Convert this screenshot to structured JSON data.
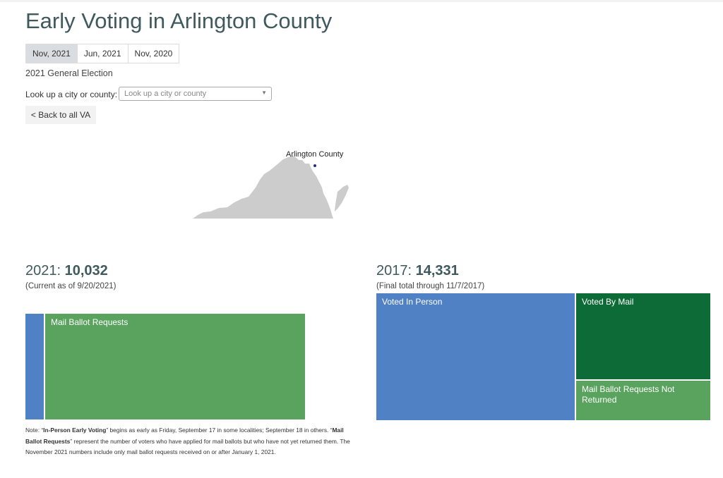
{
  "page": {
    "title": "Early Voting in Arlington County"
  },
  "tabs": [
    {
      "label": "Nov, 2021",
      "active": true
    },
    {
      "label": "Jun, 2021",
      "active": false
    },
    {
      "label": "Nov, 2020",
      "active": false
    }
  ],
  "election_name": "2021 General Election",
  "lookup": {
    "label": "Look up a city or county:",
    "placeholder": "Look up a city or county"
  },
  "back_button": {
    "label": "< Back to all VA"
  },
  "map": {
    "highlight_label": "Arlington County",
    "fill_color": "#cccccc",
    "highlight_color": "#1f2d8a"
  },
  "colors": {
    "in_person": "#4f81c4",
    "mail_requests": "#5aa35e",
    "voted_by_mail": "#0d6b38"
  },
  "current": {
    "year_label": "2021:",
    "total": "10,032",
    "as_of": "(Current as of 9/20/2021)",
    "treemap": [
      {
        "label": "",
        "category": "in_person"
      },
      {
        "label": "Mail Ballot Requests",
        "category": "mail_requests"
      }
    ]
  },
  "previous": {
    "year_label": "2017:",
    "total": "14,331",
    "as_of": "(Final total through 11/7/2017)",
    "treemap": [
      {
        "label": "Voted In Person",
        "category": "in_person"
      },
      {
        "label": "Voted By Mail",
        "category": "voted_by_mail"
      },
      {
        "label": "Mail Ballot Requests Not Returned",
        "category": "mail_requests"
      }
    ]
  },
  "note": {
    "prefix": "Note: “",
    "term1": "In-Person Early Voting",
    "mid1": "” begins as early as Friday, September 17 in some localities; September 18 in others. “",
    "term2": "Mail Ballot Requests",
    "mid2": "” represent the number of voters who have applied for mail ballots but who have not yet returned them. The November 2021 numbers include only mail ballot requests received on or after January 1, 2021."
  }
}
